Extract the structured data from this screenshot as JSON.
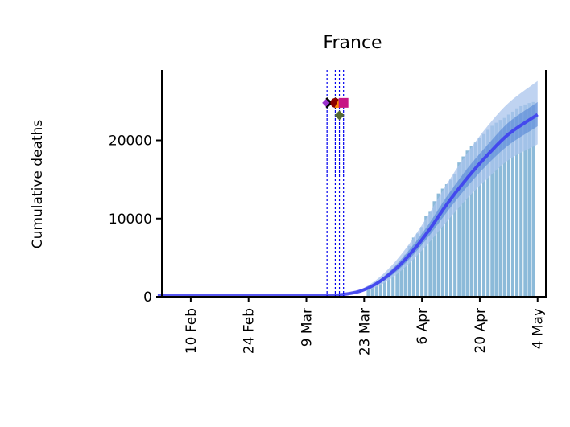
{
  "chart_data": {
    "type": "bar",
    "title": "France",
    "xlabel": "",
    "ylabel": "Cumulative deaths",
    "x_range": [
      "2020-02-03",
      "2020-05-06"
    ],
    "ylim": [
      0,
      29000
    ],
    "yticks": [
      0,
      10000,
      20000
    ],
    "ytick_labels": [
      "0",
      "10000",
      "20000"
    ],
    "xticks": [
      "2020-02-10",
      "2020-02-24",
      "2020-03-09",
      "2020-03-23",
      "2020-04-06",
      "2020-04-20",
      "2020-05-04"
    ],
    "xtick_labels": [
      "10 Feb",
      "24 Feb",
      "9 Mar",
      "23 Mar",
      "6 Apr",
      "20 Apr",
      "4 May"
    ],
    "grid": false,
    "observed_deaths": {
      "dates_start": "2020-03-24",
      "values": [
        1100,
        1330,
        1700,
        1990,
        2310,
        2610,
        3020,
        3520,
        4030,
        5390,
        6500,
        7570,
        8080,
        8910,
        10330,
        10860,
        12210,
        13200,
        13830,
        14390,
        14970,
        15730,
        17160,
        17940,
        18690,
        19320,
        19720,
        20260,
        20800,
        21340,
        21860,
        22250,
        22610,
        22860,
        23290,
        23660,
        24090,
        24380,
        24590,
        24770,
        24900
      ]
    },
    "model_fit": {
      "dates": [
        "2020-02-02",
        "2020-03-13",
        "2020-03-18",
        "2020-03-23",
        "2020-03-28",
        "2020-04-02",
        "2020-04-07",
        "2020-04-12",
        "2020-04-17",
        "2020-04-22",
        "2020-04-27",
        "2020-05-04"
      ],
      "median": [
        150,
        150,
        300,
        900,
        2400,
        4800,
        8000,
        11800,
        15200,
        18200,
        20800,
        23300
      ],
      "ci50_low": [
        150,
        150,
        280,
        800,
        2100,
        4300,
        7300,
        10800,
        14100,
        17000,
        19400,
        21800
      ],
      "ci50_high": [
        150,
        160,
        330,
        1000,
        2700,
        5400,
        8800,
        12800,
        16400,
        19500,
        22300,
        24900
      ],
      "ci95_low": [
        150,
        150,
        250,
        700,
        1800,
        3800,
        6500,
        9600,
        12600,
        15200,
        17500,
        19500
      ],
      "ci95_high": [
        150,
        170,
        380,
        1150,
        3100,
        6100,
        10000,
        14400,
        18400,
        21900,
        24800,
        27600
      ]
    },
    "intervention_lines": [
      "2020-03-14",
      "2020-03-16",
      "2020-03-17",
      "2020-03-18"
    ],
    "intervention_markers": [
      {
        "date": "2020-03-14",
        "y": 24800,
        "shape": "diamond",
        "color": "#9932cc"
      },
      {
        "date": "2020-03-15",
        "y": 24800,
        "shape": "x",
        "color": "#000000"
      },
      {
        "date": "2020-03-16",
        "y": 24800,
        "shape": "circle",
        "color": "#8b0000"
      },
      {
        "date": "2020-03-17",
        "y": 24800,
        "shape": "triangle",
        "color": "#ff8c00"
      },
      {
        "date": "2020-03-18",
        "y": 24800,
        "shape": "square",
        "color": "#c71585"
      },
      {
        "date": "2020-03-17",
        "y": 23200,
        "shape": "diamond",
        "color": "#556b2f"
      }
    ],
    "colors": {
      "bars": "#7fb3d5",
      "median": "#3b3bf0",
      "ci50": "#4a7fd4",
      "ci95": "#a9c4ec",
      "vlines": "#0000ee"
    }
  }
}
